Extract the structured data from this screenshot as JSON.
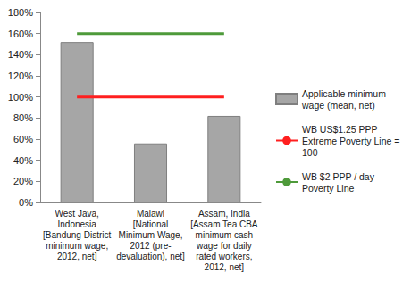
{
  "chart_data": {
    "type": "bar",
    "categories": [
      "West Java,\nIndonesia\n[Bandung District\nminimum wage,\n2012, net]",
      "Malawi\n[National\nMinimum Wage,\n2012 (pre-\ndevaluation), net]",
      "Assam, India\n[Assam Tea CBA\nminimum cash\nwage for daily\nrated workers,\n2012, net]"
    ],
    "series": [
      {
        "name": "Applicable minimum wage (mean, net)",
        "type": "bar",
        "color": "#a6a6a6",
        "values": [
          152,
          56,
          82
        ]
      },
      {
        "name": "WB US$1.25 PPP Extreme Poverty Line = 100",
        "type": "line",
        "color": "#ff1f1f",
        "values": [
          100,
          100,
          100
        ]
      },
      {
        "name": "WB $2 PPP / day Poverty Line",
        "type": "line",
        "color": "#4e9a3a",
        "values": [
          160,
          160,
          160
        ]
      }
    ],
    "ylim": [
      0,
      180
    ],
    "yticks": [
      {
        "value": 0,
        "label": "0%"
      },
      {
        "value": 20,
        "label": "20%"
      },
      {
        "value": 40,
        "label": "40%"
      },
      {
        "value": 60,
        "label": "60%"
      },
      {
        "value": 80,
        "label": "80%"
      },
      {
        "value": 100,
        "label": "100%"
      },
      {
        "value": 120,
        "label": "120%"
      },
      {
        "value": 140,
        "label": "140%"
      },
      {
        "value": 160,
        "label": "160%"
      },
      {
        "value": 180,
        "label": "180%"
      }
    ],
    "grid": false,
    "legend": "right"
  }
}
